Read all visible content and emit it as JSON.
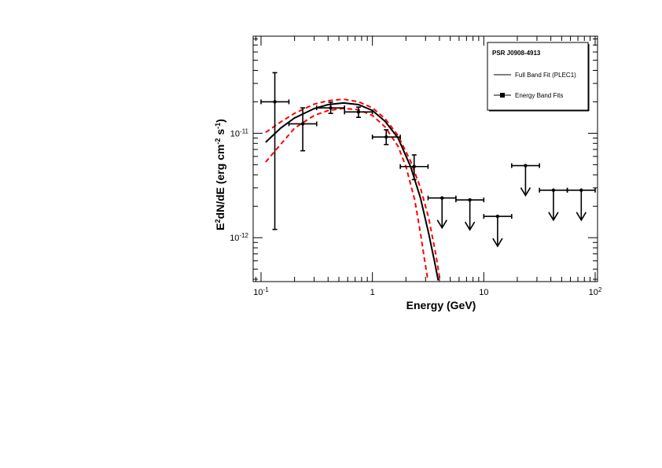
{
  "chart_data": {
    "type": "scatter",
    "title": "",
    "xlabel": "Energy (GeV)",
    "ylabel": "E2dN/dE (erg cm-2 s-1)",
    "xscale": "log",
    "yscale": "log",
    "xlim": [
      0.085,
      105
    ],
    "ylim": [
      3.8e-13,
      8.5e-11
    ],
    "x_ticks": [
      {
        "value": 0.1,
        "base": "10",
        "exp": "-1"
      },
      {
        "value": 1,
        "base": "1",
        "exp": ""
      },
      {
        "value": 10,
        "base": "10",
        "exp": ""
      },
      {
        "value": 100,
        "base": "10",
        "exp": "2"
      }
    ],
    "y_ticks": [
      {
        "value": 1e-12,
        "base": "10",
        "exp": "-12"
      },
      {
        "value": 1e-11,
        "base": "10",
        "exp": "-11"
      }
    ],
    "legend": {
      "position": "top-right",
      "title": "PSR J0908-4913",
      "entries": [
        {
          "label": "Full Band Fit (PLEC1)",
          "style": "line"
        },
        {
          "label": "Energy Band Fits",
          "style": "marker-line"
        }
      ]
    },
    "series": [
      {
        "name": "Energy Band Fits",
        "points": [
          {
            "x": 0.133,
            "xlo": 0.1,
            "xhi": 0.178,
            "y": 2e-11,
            "ylo": 1.2e-12,
            "yhi": 3.8e-11
          },
          {
            "x": 0.237,
            "xlo": 0.178,
            "xhi": 0.316,
            "y": 1.23e-11,
            "ylo": 6.8e-12,
            "yhi": 1.75e-11
          },
          {
            "x": 0.422,
            "xlo": 0.316,
            "xhi": 0.562,
            "y": 1.75e-11,
            "ylo": 1.55e-11,
            "yhi": 1.98e-11
          },
          {
            "x": 0.75,
            "xlo": 0.562,
            "xhi": 1.0,
            "y": 1.6e-11,
            "ylo": 1.42e-11,
            "yhi": 1.78e-11
          },
          {
            "x": 1.33,
            "xlo": 1.0,
            "xhi": 1.78,
            "y": 9.2e-12,
            "ylo": 7.8e-12,
            "yhi": 1.08e-11
          },
          {
            "x": 2.37,
            "xlo": 1.78,
            "xhi": 3.16,
            "y": 4.8e-12,
            "ylo": 3.6e-12,
            "yhi": 6.2e-12
          }
        ]
      },
      {
        "name": "Upper limits",
        "points": [
          {
            "x": 4.22,
            "xlo": 3.16,
            "xhi": 5.62,
            "y": 2.4e-12
          },
          {
            "x": 7.5,
            "xlo": 5.62,
            "xhi": 10.0,
            "y": 2.3e-12
          },
          {
            "x": 13.3,
            "xlo": 10.0,
            "xhi": 17.8,
            "y": 1.6e-12
          },
          {
            "x": 23.7,
            "xlo": 17.8,
            "xhi": 31.6,
            "y": 4.9e-12
          },
          {
            "x": 42.2,
            "xlo": 31.6,
            "xhi": 56.2,
            "y": 2.85e-12
          },
          {
            "x": 75.0,
            "xlo": 56.2,
            "xhi": 100.0,
            "y": 2.85e-12
          }
        ]
      },
      {
        "name": "Full Band Fit (PLEC1)",
        "style": "solid",
        "color": "#000000",
        "points": [
          [
            0.11,
            8.2e-12
          ],
          [
            0.15,
            1.12e-11
          ],
          [
            0.2,
            1.4e-11
          ],
          [
            0.3,
            1.72e-11
          ],
          [
            0.4,
            1.88e-11
          ],
          [
            0.55,
            1.95e-11
          ],
          [
            0.75,
            1.88e-11
          ],
          [
            1.0,
            1.65e-11
          ],
          [
            1.3,
            1.3e-11
          ],
          [
            1.7,
            9e-12
          ],
          [
            2.2,
            4.8e-12
          ],
          [
            2.7,
            2.4e-12
          ],
          [
            3.2,
            1.1e-12
          ],
          [
            3.6,
            6e-13
          ],
          [
            3.9,
            3.9e-13
          ]
        ]
      },
      {
        "name": "Fit uncertainty upper",
        "style": "dashed",
        "color": "#ff0000",
        "points": [
          [
            0.11,
            1.02e-11
          ],
          [
            0.15,
            1.28e-11
          ],
          [
            0.2,
            1.55e-11
          ],
          [
            0.3,
            1.9e-11
          ],
          [
            0.4,
            2.05e-11
          ],
          [
            0.55,
            2.12e-11
          ],
          [
            0.75,
            2e-11
          ],
          [
            1.0,
            1.75e-11
          ],
          [
            1.3,
            1.38e-11
          ],
          [
            1.7,
            9.5e-12
          ],
          [
            2.2,
            5.4e-12
          ],
          [
            2.7,
            3e-12
          ],
          [
            3.2,
            1.55e-12
          ],
          [
            3.7,
            7e-13
          ],
          [
            4.05,
            3.9e-13
          ]
        ]
      },
      {
        "name": "Fit uncertainty lower",
        "style": "dashed",
        "color": "#ff0000",
        "points": [
          [
            0.11,
            5.3e-12
          ],
          [
            0.15,
            7.8e-12
          ],
          [
            0.2,
            1.12e-11
          ],
          [
            0.3,
            1.48e-11
          ],
          [
            0.4,
            1.65e-11
          ],
          [
            0.55,
            1.73e-11
          ],
          [
            0.75,
            1.68e-11
          ],
          [
            1.0,
            1.48e-11
          ],
          [
            1.3,
            1.15e-11
          ],
          [
            1.7,
            7.5e-12
          ],
          [
            2.0,
            4.8e-12
          ],
          [
            2.4,
            2.3e-12
          ],
          [
            2.7,
            1.1e-12
          ],
          [
            2.95,
            6e-13
          ],
          [
            3.15,
            3.9e-13
          ]
        ]
      }
    ]
  }
}
